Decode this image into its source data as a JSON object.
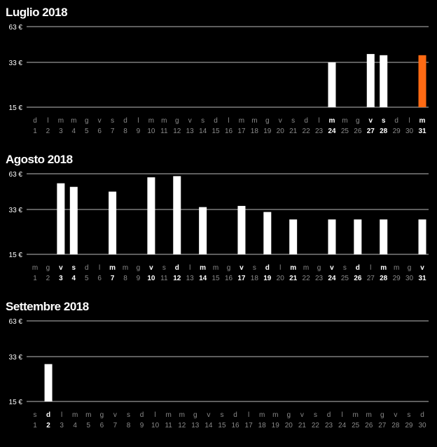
{
  "colors": {
    "bar": "#ffffff",
    "bar_highlight": "#ff6a13",
    "grid": "#bdbdbd",
    "background": "#000000",
    "muted_text": "#8a8a8a"
  },
  "chart_data": [
    {
      "type": "bar",
      "title": "Luglio 2018",
      "ylim": [
        15,
        63
      ],
      "yticks": [
        "15 €",
        "33 €",
        "63 €"
      ],
      "ytick_values": [
        15,
        33,
        63
      ],
      "days": [
        "1",
        "2",
        "3",
        "4",
        "5",
        "6",
        "7",
        "8",
        "9",
        "10",
        "11",
        "12",
        "13",
        "14",
        "15",
        "16",
        "17",
        "18",
        "19",
        "20",
        "21",
        "22",
        "23",
        "24",
        "25",
        "26",
        "27",
        "28",
        "29",
        "30",
        "31"
      ],
      "weekdays": [
        "d",
        "l",
        "m",
        "m",
        "g",
        "v",
        "s",
        "d",
        "l",
        "m",
        "m",
        "g",
        "v",
        "s",
        "d",
        "l",
        "m",
        "m",
        "g",
        "v",
        "s",
        "d",
        "l",
        "m",
        "m",
        "g",
        "v",
        "s",
        "d",
        "l",
        "m"
      ],
      "values": [
        null,
        null,
        null,
        null,
        null,
        null,
        null,
        null,
        null,
        null,
        null,
        null,
        null,
        null,
        null,
        null,
        null,
        null,
        null,
        null,
        null,
        null,
        null,
        33,
        null,
        null,
        40,
        39,
        null,
        null,
        39
      ],
      "highlighted_day": "31"
    },
    {
      "type": "bar",
      "title": "Agosto 2018",
      "ylim": [
        15,
        63
      ],
      "yticks": [
        "15 €",
        "33 €",
        "63 €"
      ],
      "ytick_values": [
        15,
        33,
        63
      ],
      "days": [
        "1",
        "2",
        "3",
        "4",
        "5",
        "6",
        "7",
        "8",
        "9",
        "10",
        "11",
        "12",
        "13",
        "14",
        "15",
        "16",
        "17",
        "18",
        "19",
        "20",
        "21",
        "22",
        "23",
        "24",
        "25",
        "26",
        "27",
        "28",
        "29",
        "30",
        "31"
      ],
      "weekdays": [
        "m",
        "g",
        "v",
        "s",
        "d",
        "l",
        "m",
        "m",
        "g",
        "v",
        "s",
        "d",
        "l",
        "m",
        "m",
        "g",
        "v",
        "s",
        "d",
        "l",
        "m",
        "m",
        "g",
        "v",
        "s",
        "d",
        "l",
        "m",
        "m",
        "g",
        "v"
      ],
      "values": [
        null,
        null,
        55,
        52,
        null,
        null,
        48,
        null,
        null,
        60,
        null,
        61,
        null,
        35,
        null,
        null,
        36,
        null,
        32,
        null,
        29,
        null,
        null,
        29,
        null,
        29,
        null,
        29,
        null,
        null,
        29
      ],
      "highlighted_day": null
    },
    {
      "type": "bar",
      "title": "Settembre 2018",
      "ylim": [
        15,
        63
      ],
      "yticks": [
        "15 €",
        "33 €",
        "63 €"
      ],
      "ytick_values": [
        15,
        33,
        63
      ],
      "days": [
        "1",
        "2",
        "3",
        "4",
        "5",
        "6",
        "7",
        "8",
        "9",
        "10",
        "11",
        "12",
        "13",
        "14",
        "15",
        "16",
        "17",
        "18",
        "19",
        "20",
        "21",
        "22",
        "23",
        "24",
        "25",
        "26",
        "27",
        "28",
        "29",
        "30"
      ],
      "weekdays": [
        "s",
        "d",
        "l",
        "m",
        "m",
        "g",
        "v",
        "s",
        "d",
        "l",
        "m",
        "m",
        "g",
        "v",
        "s",
        "d",
        "l",
        "m",
        "m",
        "g",
        "v",
        "s",
        "d",
        "l",
        "m",
        "m",
        "g",
        "v",
        "s",
        "d"
      ],
      "values": [
        null,
        30,
        null,
        null,
        null,
        null,
        null,
        null,
        null,
        null,
        null,
        null,
        null,
        null,
        null,
        null,
        null,
        null,
        null,
        null,
        null,
        null,
        null,
        null,
        null,
        null,
        null,
        null,
        null,
        null
      ],
      "highlighted_day": null
    }
  ]
}
